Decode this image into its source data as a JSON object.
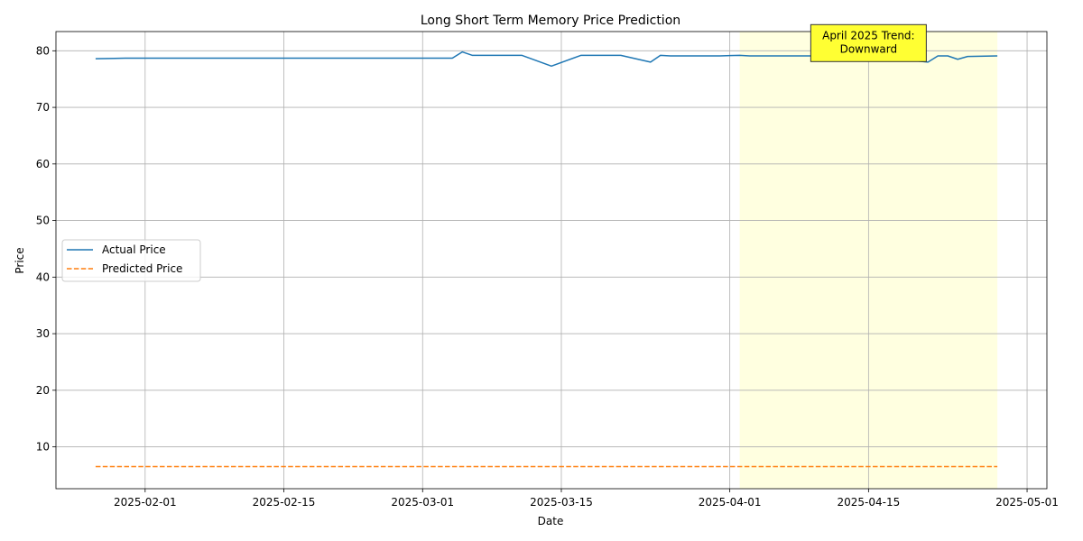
{
  "chart_data": {
    "type": "line",
    "title": "Long Short Term Memory Price Prediction",
    "xlabel": "Date",
    "ylabel": "Price",
    "x_type": "date",
    "xlim": [
      "2025-01-23",
      "2025-05-03"
    ],
    "ylim": [
      2.6,
      83.4
    ],
    "x_ticks": [
      "2025-02-01",
      "2025-02-15",
      "2025-03-01",
      "2025-03-15",
      "2025-04-01",
      "2025-04-15",
      "2025-05-01"
    ],
    "y_ticks": [
      10,
      20,
      30,
      40,
      50,
      60,
      70,
      80
    ],
    "grid": true,
    "legend_position": "center-left",
    "highlight": {
      "start": "2025-04-02",
      "end": "2025-04-28",
      "color": "#ffffe0"
    },
    "annotation": {
      "text_lines": [
        "April 2025 Trend:",
        "Downward"
      ],
      "x": "2025-04-15",
      "y": 81.6,
      "background": "#ffff33"
    },
    "series": [
      {
        "name": "Actual Price",
        "color": "#1f77b4",
        "style": "solid",
        "x": [
          "2025-01-27",
          "2025-01-30",
          "2025-02-03",
          "2025-02-10",
          "2025-02-17",
          "2025-02-24",
          "2025-03-03",
          "2025-03-04",
          "2025-03-05",
          "2025-03-06",
          "2025-03-07",
          "2025-03-10",
          "2025-03-11",
          "2025-03-14",
          "2025-03-17",
          "2025-03-18",
          "2025-03-20",
          "2025-03-21",
          "2025-03-24",
          "2025-03-25",
          "2025-03-26",
          "2025-03-28",
          "2025-03-31",
          "2025-04-01",
          "2025-04-02",
          "2025-04-03",
          "2025-04-07",
          "2025-04-10",
          "2025-04-14",
          "2025-04-15",
          "2025-04-21",
          "2025-04-22",
          "2025-04-23",
          "2025-04-24",
          "2025-04-25",
          "2025-04-28"
        ],
        "values": [
          78.6,
          78.7,
          78.7,
          78.7,
          78.7,
          78.7,
          78.7,
          78.7,
          79.8,
          79.2,
          79.2,
          79.2,
          79.2,
          77.3,
          79.2,
          79.2,
          79.2,
          79.2,
          78.0,
          79.2,
          79.1,
          79.1,
          79.1,
          79.15,
          79.2,
          79.1,
          79.1,
          79.1,
          79.1,
          79.1,
          78.0,
          79.1,
          79.1,
          78.5,
          79.0,
          79.1
        ]
      },
      {
        "name": "Predicted Price",
        "color": "#ff7f0e",
        "style": "dashed",
        "x": [
          "2025-01-27",
          "2025-02-10",
          "2025-02-24",
          "2025-03-10",
          "2025-03-24",
          "2025-04-07",
          "2025-04-21",
          "2025-04-28"
        ],
        "values": [
          6.5,
          6.5,
          6.5,
          6.5,
          6.5,
          6.5,
          6.5,
          6.5
        ]
      }
    ]
  }
}
